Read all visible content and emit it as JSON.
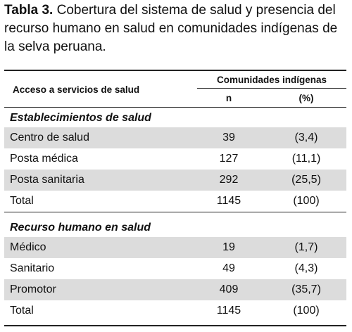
{
  "caption": {
    "label": "Tabla 3.",
    "text": "Cobertura del sistema de salud y presencia del recurso humano en salud en comunidades indígenas de la selva peruana."
  },
  "table": {
    "header": {
      "rowlabel": "Acceso a servicios de salud",
      "group": "Comunidades indígenas",
      "columns": [
        "n",
        "(%)"
      ]
    },
    "sections": [
      {
        "title": "Establecimientos de salud",
        "rows": [
          [
            "Centro de salud",
            39,
            "(3,4)"
          ],
          [
            "Posta médica",
            127,
            "(11,1)"
          ],
          [
            "Posta sanitaria",
            292,
            "(25,5)"
          ],
          [
            "Total",
            1145,
            "(100)"
          ]
        ]
      },
      {
        "title": "Recurso humano en salud",
        "rows": [
          [
            "Médico",
            19,
            "(1,7)"
          ],
          [
            "Sanitario",
            49,
            "(4,3)"
          ],
          [
            "Promotor",
            409,
            "(35,7)"
          ],
          [
            "Total",
            1145,
            "(100)"
          ]
        ]
      }
    ]
  }
}
